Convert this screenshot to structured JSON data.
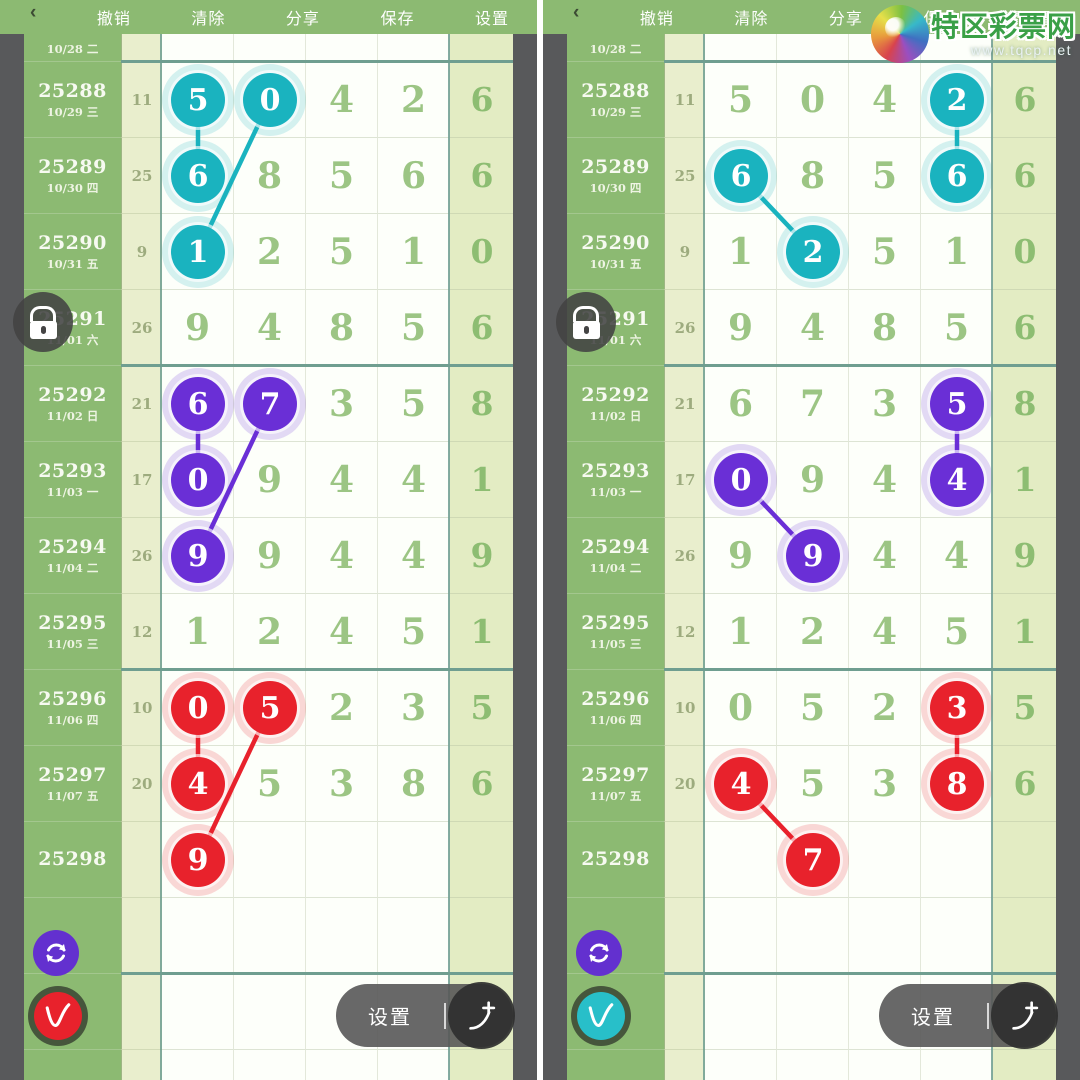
{
  "toolbar": {
    "back_icon": "‹",
    "items": [
      "撤销",
      "清除",
      "分享",
      "保存",
      "设置"
    ]
  },
  "watermark": {
    "title": "特区彩票网",
    "url": "www.tqcp.net"
  },
  "bottom": {
    "settings_label": "设置",
    "divider": "|"
  },
  "colors": {
    "teal": "#1ab3bf",
    "purple": "#6a2fd6",
    "red": "#e8222c"
  },
  "table": {
    "partial_top_date": "10/28 二",
    "rows": [
      {
        "num": "25288",
        "date": "10/29 三",
        "count": "11",
        "d": [
          "5",
          "0",
          "4",
          "2"
        ],
        "last": "6"
      },
      {
        "num": "25289",
        "date": "10/30 四",
        "count": "25",
        "d": [
          "6",
          "8",
          "5",
          "6"
        ],
        "last": "6"
      },
      {
        "num": "25290",
        "date": "10/31 五",
        "count": "9",
        "d": [
          "1",
          "2",
          "5",
          "1"
        ],
        "last": "0"
      },
      {
        "num": "25291",
        "date": "11/01 六",
        "count": "26",
        "d": [
          "9",
          "4",
          "8",
          "5"
        ],
        "last": "6"
      },
      {
        "num": "25292",
        "date": "11/02 日",
        "count": "21",
        "d": [
          "6",
          "7",
          "3",
          "5"
        ],
        "last": "8"
      },
      {
        "num": "25293",
        "date": "11/03 一",
        "count": "17",
        "d": [
          "0",
          "9",
          "4",
          "4"
        ],
        "last": "1"
      },
      {
        "num": "25294",
        "date": "11/04 二",
        "count": "26",
        "d": [
          "9",
          "9",
          "4",
          "4"
        ],
        "last": "9"
      },
      {
        "num": "25295",
        "date": "11/05 三",
        "count": "12",
        "d": [
          "1",
          "2",
          "4",
          "5"
        ],
        "last": "1"
      },
      {
        "num": "25296",
        "date": "11/06 四",
        "count": "10",
        "d": [
          "0",
          "5",
          "2",
          "3"
        ],
        "last": "5"
      },
      {
        "num": "25297",
        "date": "11/07 五",
        "count": "20",
        "d": [
          "4",
          "5",
          "3",
          "8"
        ],
        "last": "6"
      },
      {
        "num": "25298",
        "date": "",
        "count": "",
        "d": [
          "",
          "",
          "",
          ""
        ],
        "last": ""
      }
    ]
  },
  "panels": [
    {
      "name": "left",
      "v_badge_color": "#e8222c",
      "marks": [
        {
          "row": 0,
          "col": 0,
          "digit": "5",
          "color": "teal"
        },
        {
          "row": 0,
          "col": 1,
          "digit": "0",
          "color": "teal"
        },
        {
          "row": 1,
          "col": 0,
          "digit": "6",
          "color": "teal"
        },
        {
          "row": 2,
          "col": 0,
          "digit": "1",
          "color": "teal"
        },
        {
          "row": 4,
          "col": 0,
          "digit": "6",
          "color": "purple"
        },
        {
          "row": 4,
          "col": 1,
          "digit": "7",
          "color": "purple"
        },
        {
          "row": 5,
          "col": 0,
          "digit": "0",
          "color": "purple"
        },
        {
          "row": 6,
          "col": 0,
          "digit": "9",
          "color": "purple"
        },
        {
          "row": 8,
          "col": 0,
          "digit": "0",
          "color": "red"
        },
        {
          "row": 8,
          "col": 1,
          "digit": "5",
          "color": "red"
        },
        {
          "row": 9,
          "col": 0,
          "digit": "4",
          "color": "red"
        },
        {
          "row": 10,
          "col": 0,
          "digit": "9",
          "color": "red"
        }
      ],
      "lines": [
        {
          "from": [
            0,
            0
          ],
          "to": [
            1,
            0
          ],
          "color": "teal"
        },
        {
          "from": [
            0,
            1
          ],
          "to": [
            2,
            0
          ],
          "color": "teal"
        },
        {
          "from": [
            4,
            0
          ],
          "to": [
            5,
            0
          ],
          "color": "purple"
        },
        {
          "from": [
            4,
            1
          ],
          "to": [
            6,
            0
          ],
          "color": "purple"
        },
        {
          "from": [
            8,
            0
          ],
          "to": [
            9,
            0
          ],
          "color": "red"
        },
        {
          "from": [
            8,
            1
          ],
          "to": [
            10,
            0
          ],
          "color": "red"
        }
      ]
    },
    {
      "name": "right",
      "v_badge_color": "#28bfc9",
      "marks": [
        {
          "row": 0,
          "col": 3,
          "digit": "2",
          "color": "teal"
        },
        {
          "row": 1,
          "col": 0,
          "digit": "6",
          "color": "teal"
        },
        {
          "row": 1,
          "col": 3,
          "digit": "6",
          "color": "teal"
        },
        {
          "row": 2,
          "col": 1,
          "digit": "2",
          "color": "teal"
        },
        {
          "row": 4,
          "col": 3,
          "digit": "5",
          "color": "purple"
        },
        {
          "row": 5,
          "col": 0,
          "digit": "0",
          "color": "purple"
        },
        {
          "row": 5,
          "col": 3,
          "digit": "4",
          "color": "purple"
        },
        {
          "row": 6,
          "col": 1,
          "digit": "9",
          "color": "purple"
        },
        {
          "row": 8,
          "col": 3,
          "digit": "3",
          "color": "red"
        },
        {
          "row": 9,
          "col": 0,
          "digit": "4",
          "color": "red"
        },
        {
          "row": 9,
          "col": 3,
          "digit": "8",
          "color": "red"
        },
        {
          "row": 10,
          "col": 1,
          "digit": "7",
          "color": "red"
        }
      ],
      "lines": [
        {
          "from": [
            0,
            3
          ],
          "to": [
            1,
            3
          ],
          "color": "teal"
        },
        {
          "from": [
            1,
            0
          ],
          "to": [
            2,
            1
          ],
          "color": "teal"
        },
        {
          "from": [
            4,
            3
          ],
          "to": [
            5,
            3
          ],
          "color": "purple"
        },
        {
          "from": [
            5,
            0
          ],
          "to": [
            6,
            1
          ],
          "color": "purple"
        },
        {
          "from": [
            8,
            3
          ],
          "to": [
            9,
            3
          ],
          "color": "red"
        },
        {
          "from": [
            9,
            0
          ],
          "to": [
            10,
            1
          ],
          "color": "red"
        }
      ]
    }
  ]
}
